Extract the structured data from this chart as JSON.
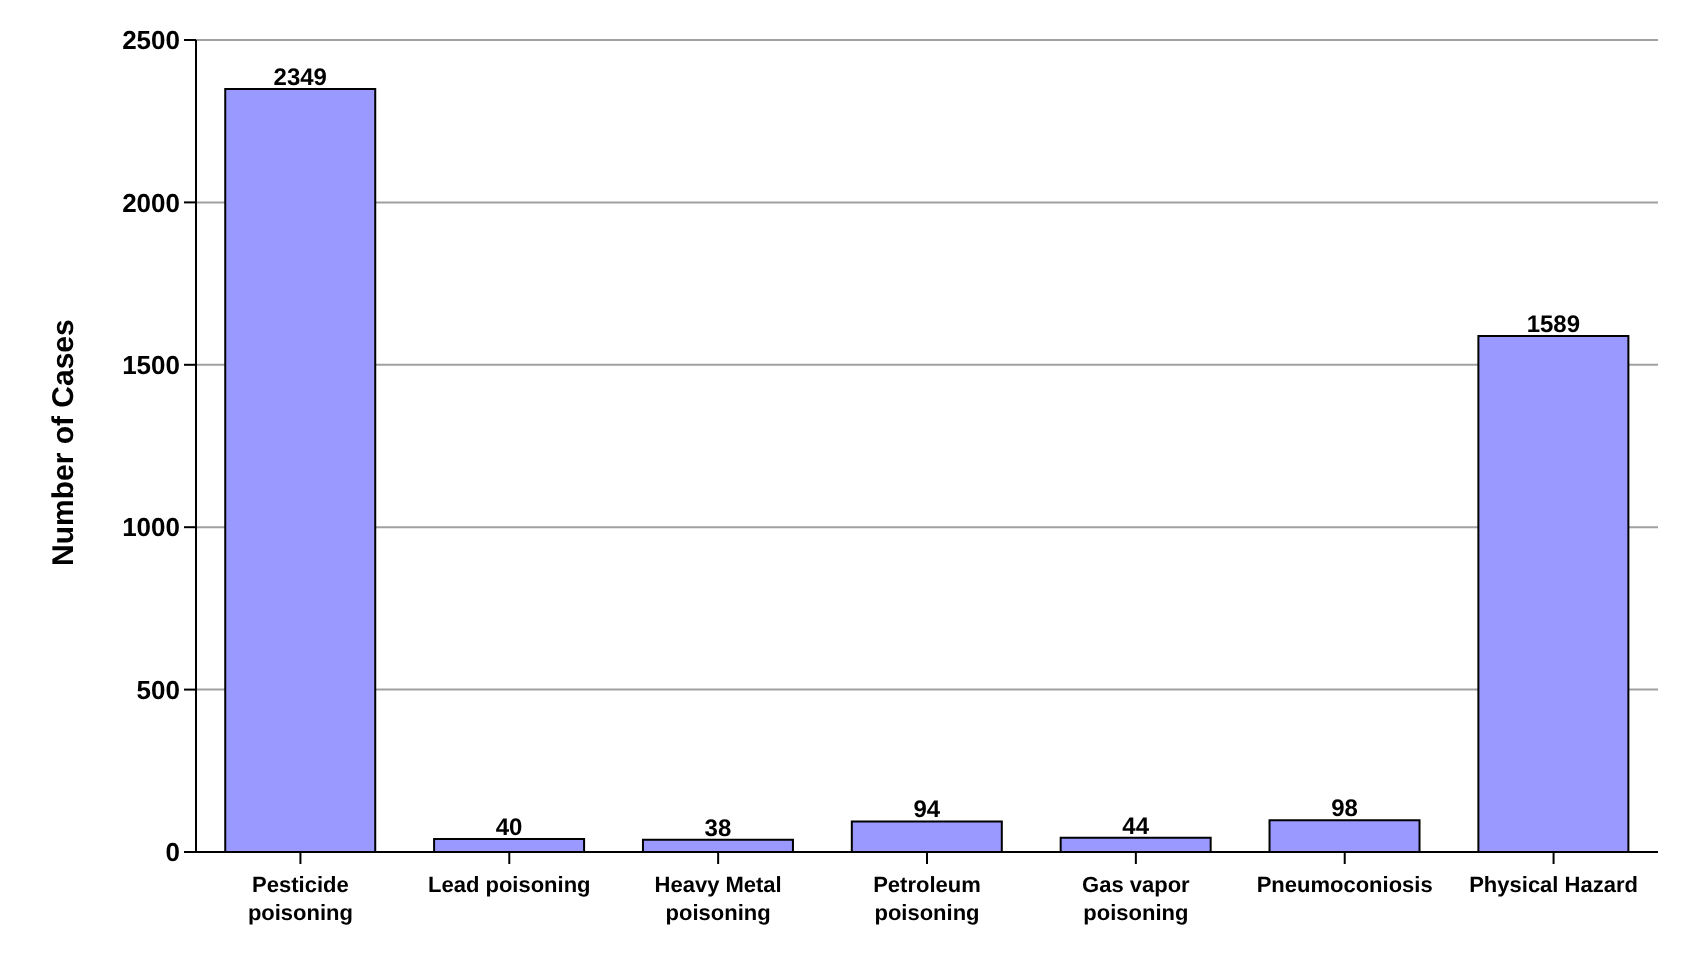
{
  "chart_data": {
    "type": "bar",
    "ylabel": "Number of Cases",
    "categories": [
      "Pesticide poisoning",
      "Lead poisoning",
      "Heavy Metal poisoning",
      "Petroleum poisoning",
      "Gas vapor poisoning",
      "Pneumoconiosis",
      "Physical Hazard"
    ],
    "values": [
      2349,
      40,
      38,
      94,
      44,
      98,
      1589
    ],
    "color": "#9999ff",
    "ylim": [
      0,
      2500
    ],
    "yticks": [
      0,
      500,
      1000,
      1500,
      2000,
      2500
    ],
    "grid": "y",
    "data_labels": true
  }
}
